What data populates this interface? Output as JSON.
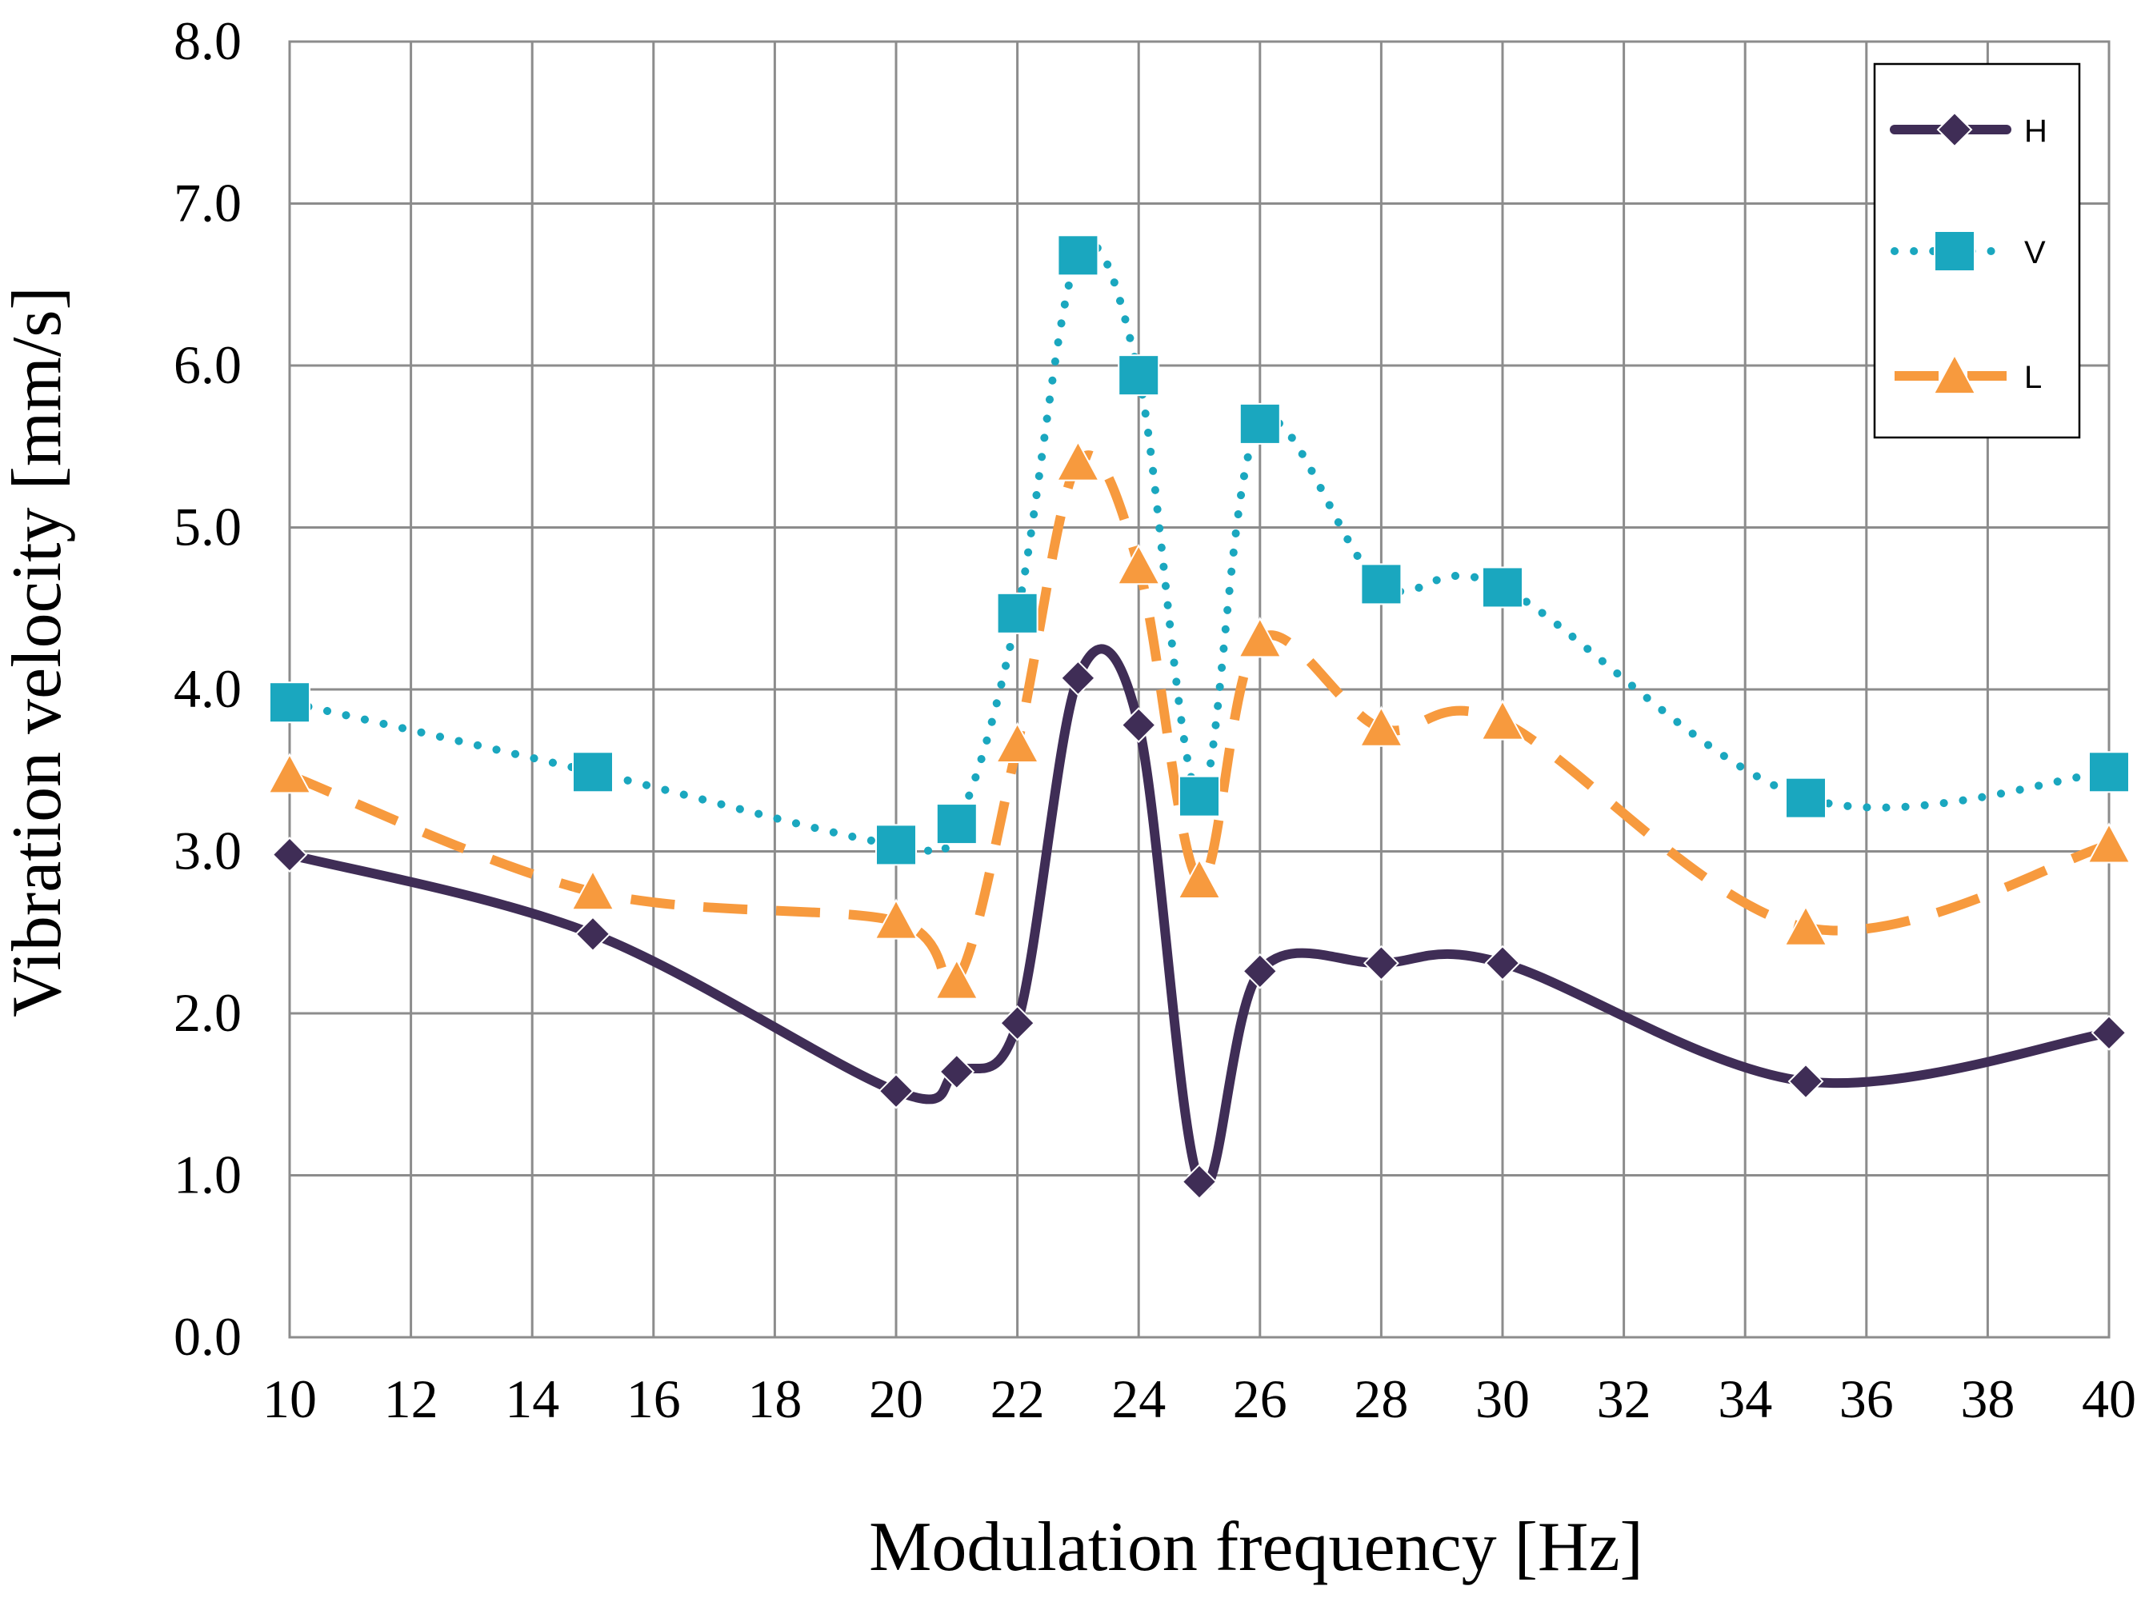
{
  "chart_data": {
    "type": "line",
    "title": "",
    "xlabel": "Modulation frequency [Hz]",
    "ylabel": "Vibration velocity [mm/s]",
    "xlim": [
      10,
      40
    ],
    "ylim": [
      0,
      8
    ],
    "x_ticks": [
      "10",
      "12",
      "14",
      "16",
      "18",
      "20",
      "22",
      "24",
      "26",
      "28",
      "30",
      "32",
      "34",
      "36",
      "38",
      "40"
    ],
    "y_ticks": [
      "0.0",
      "1.0",
      "2.0",
      "3.0",
      "4.0",
      "5.0",
      "6.0",
      "7.0",
      "8.0"
    ],
    "grid": true,
    "legend_position": "top-right",
    "series": [
      {
        "name": "H",
        "color": "#3f2d56",
        "marker": "diamond",
        "line_style": "solid",
        "x": [
          10,
          15,
          20,
          21,
          22,
          23,
          24,
          25,
          26,
          28,
          30,
          35,
          40
        ],
        "y": [
          2.98,
          2.49,
          1.52,
          1.64,
          1.94,
          4.07,
          3.78,
          0.96,
          2.26,
          2.31,
          2.31,
          1.58,
          1.88
        ]
      },
      {
        "name": "V",
        "color": "#1aa7bf",
        "marker": "square",
        "line_style": "dotted",
        "x": [
          10,
          15,
          20,
          21,
          22,
          23,
          24,
          25,
          26,
          28,
          30,
          35,
          40
        ],
        "y": [
          3.92,
          3.49,
          3.04,
          3.17,
          4.47,
          6.68,
          5.94,
          3.34,
          5.64,
          4.65,
          4.63,
          3.33,
          3.49
        ]
      },
      {
        "name": "L",
        "color": "#f79a3e",
        "marker": "triangle",
        "line_style": "dashed",
        "x": [
          10,
          15,
          20,
          21,
          22,
          23,
          24,
          25,
          26,
          28,
          30,
          35,
          40
        ],
        "y": [
          3.47,
          2.75,
          2.57,
          2.2,
          3.66,
          5.4,
          4.76,
          2.82,
          4.31,
          3.76,
          3.8,
          2.53,
          3.04
        ]
      }
    ]
  }
}
